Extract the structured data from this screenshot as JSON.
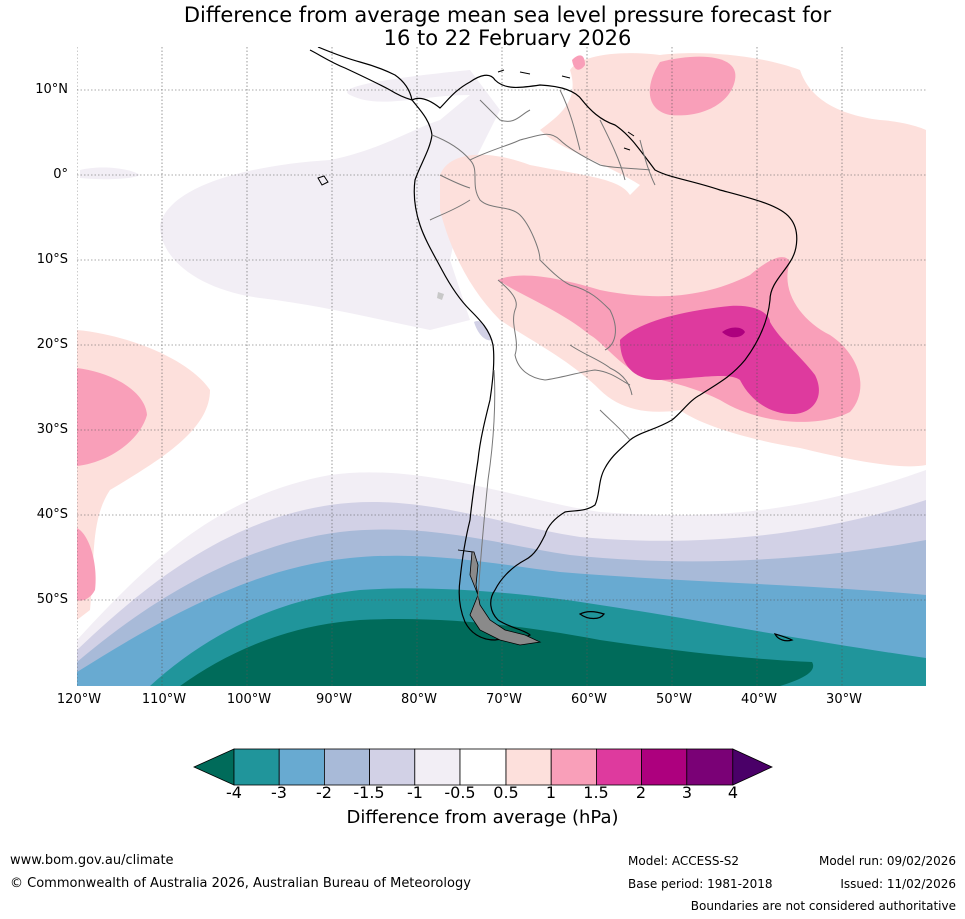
{
  "title": {
    "line1": "Difference from average mean sea level pressure forecast for",
    "line2": "16 to 22 February 2026"
  },
  "map": {
    "region": "South America",
    "lat_labels": [
      "10°N",
      "0°",
      "10°S",
      "20°S",
      "30°S",
      "40°S",
      "50°S"
    ],
    "lon_labels": [
      "120°W",
      "110°W",
      "100°W",
      "90°W",
      "80°W",
      "70°W",
      "60°W",
      "50°W",
      "40°W",
      "30°W"
    ]
  },
  "colorbar": {
    "title": "Difference from average (hPa)",
    "ticks": [
      "-4",
      "-3",
      "-2",
      "-1.5",
      "-1",
      "-0.5",
      "0.5",
      "1",
      "1.5",
      "2",
      "3",
      "4"
    ],
    "colors": {
      "below_-4": "#006b5a",
      "-4_-3": "#20959b",
      "-3_-2": "#68aad1",
      "-2_-1.5": "#a8bad8",
      "-1.5_-1": "#d2d1e6",
      "-1_-0.5": "#f2eef5",
      "-0.5_0.5": "#ffffff",
      "0.5_1": "#fde0dc",
      "1_1.5": "#f99fb9",
      "1.5_2": "#de3a9e",
      "2_3": "#ad007e",
      "3_4": "#7a0176",
      "above_4": "#4a0068"
    }
  },
  "footer": {
    "website": "www.bom.gov.au/climate",
    "copyright": "© Commonwealth of Australia 2026, Australian Bureau of Meteorology",
    "model": "Model: ACCESS-S2",
    "base_period": "Base period: 1981-2018",
    "model_run": "Model run: 09/02/2026",
    "issued": "Issued: 11/02/2026",
    "disclaimer": "Boundaries are not considered authoritative"
  }
}
